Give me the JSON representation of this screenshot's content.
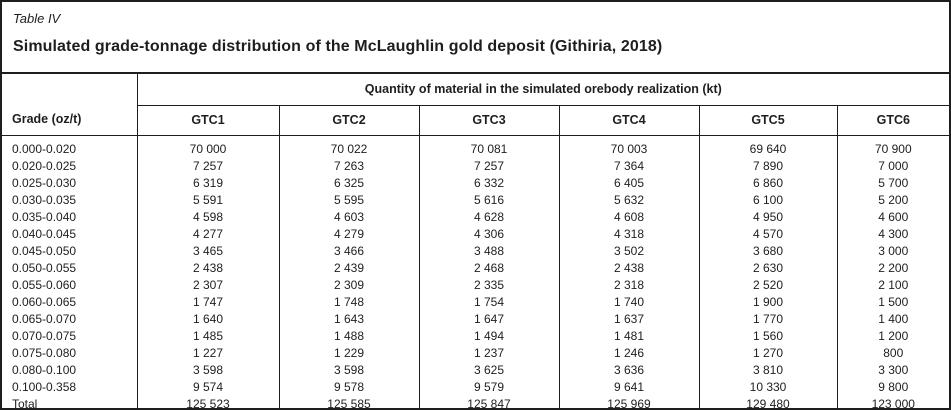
{
  "table": {
    "label": "Table IV",
    "title": "Simulated grade-tonnage distribution of the McLaughlin gold deposit (Githiria, 2018)",
    "grade_header": "Grade (oz/t)",
    "span_header": "Quantity of material in the simulated orebody realization (kt)",
    "columns": [
      "GTC1",
      "GTC2",
      "GTC3",
      "GTC4",
      "GTC5",
      "GTC6"
    ],
    "rows": [
      {
        "grade": "0.000-0.020",
        "values": [
          "70 000",
          "70 022",
          "70 081",
          "70 003",
          "69 640",
          "70 900"
        ]
      },
      {
        "grade": "0.020-0.025",
        "values": [
          "7 257",
          "7 263",
          "7 257",
          "7 364",
          "7 890",
          "7 000"
        ]
      },
      {
        "grade": "0.025-0.030",
        "values": [
          "6 319",
          "6 325",
          "6 332",
          "6 405",
          "6 860",
          "5 700"
        ]
      },
      {
        "grade": "0.030-0.035",
        "values": [
          "5 591",
          "5 595",
          "5 616",
          "5 632",
          "6 100",
          "5 200"
        ]
      },
      {
        "grade": "0.035-0.040",
        "values": [
          "4 598",
          "4 603",
          "4 628",
          "4 608",
          "4 950",
          "4 600"
        ]
      },
      {
        "grade": "0.040-0.045",
        "values": [
          "4 277",
          "4 279",
          "4 306",
          "4 318",
          "4 570",
          "4 300"
        ]
      },
      {
        "grade": "0.045-0.050",
        "values": [
          "3 465",
          "3 466",
          "3 488",
          "3 502",
          "3 680",
          "3 000"
        ]
      },
      {
        "grade": "0.050-0.055",
        "values": [
          "2 438",
          "2 439",
          "2 468",
          "2 438",
          "2 630",
          "2 200"
        ]
      },
      {
        "grade": "0.055-0.060",
        "values": [
          "2 307",
          "2 309",
          "2 335",
          "2 318",
          "2 520",
          "2 100"
        ]
      },
      {
        "grade": "0.060-0.065",
        "values": [
          "1 747",
          "1 748",
          "1 754",
          "1 740",
          "1 900",
          "1 500"
        ]
      },
      {
        "grade": "0.065-0.070",
        "values": [
          "1 640",
          "1 643",
          "1 647",
          "1 637",
          "1 770",
          "1 400"
        ]
      },
      {
        "grade": "0.070-0.075",
        "values": [
          "1 485",
          "1 488",
          "1 494",
          "1 481",
          "1 560",
          "1 200"
        ]
      },
      {
        "grade": "0.075-0.080",
        "values": [
          "1 227",
          "1 229",
          "1 237",
          "1 246",
          "1 270",
          "800"
        ]
      },
      {
        "grade": "0.080-0.100",
        "values": [
          "3 598",
          "3 598",
          "3 625",
          "3 636",
          "3 810",
          "3 300"
        ]
      },
      {
        "grade": "0.100-0.358",
        "values": [
          "9 574",
          "9 578",
          "9 579",
          "9 641",
          "10 330",
          "9 800"
        ]
      },
      {
        "grade": "Total",
        "values": [
          "125 523",
          "125 585",
          "125 847",
          "125 969",
          "129 480",
          "123 000"
        ]
      }
    ]
  }
}
